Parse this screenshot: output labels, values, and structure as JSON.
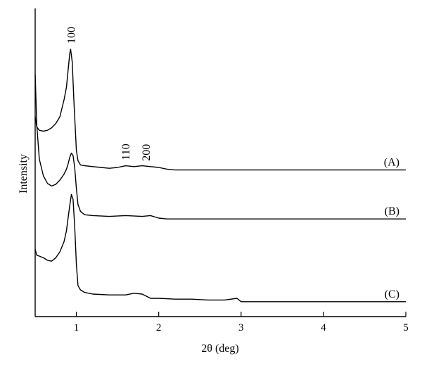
{
  "chart_data": {
    "type": "line",
    "xlabel": "2θ (deg)",
    "ylabel": "Intensity",
    "xlim": [
      0.5,
      5
    ],
    "x_ticks": [
      1,
      2,
      3,
      4,
      5
    ],
    "x_tick_labels": [
      "1",
      "2",
      "3",
      "4",
      "5"
    ],
    "y_ticks_shown": false,
    "grid": false,
    "legend": "none",
    "series": [
      {
        "name": "(A)",
        "x": [
          0.5,
          0.52,
          0.55,
          0.6,
          0.65,
          0.7,
          0.75,
          0.8,
          0.85,
          0.88,
          0.9,
          0.92,
          0.93,
          0.95,
          0.97,
          0.99,
          1.0,
          1.02,
          1.05,
          1.1,
          1.2,
          1.3,
          1.4,
          1.5,
          1.6,
          1.7,
          1.8,
          1.9,
          2.0,
          2.1,
          2.2,
          2.3,
          2.5,
          3.0,
          4.0,
          5.0
        ],
        "y": [
          2.2,
          2.08,
          2.04,
          2.03,
          2.04,
          2.07,
          2.12,
          2.2,
          2.4,
          2.55,
          2.75,
          2.95,
          3.0,
          2.85,
          2.4,
          2.0,
          1.8,
          1.68,
          1.63,
          1.62,
          1.61,
          1.6,
          1.59,
          1.6,
          1.62,
          1.61,
          1.62,
          1.61,
          1.6,
          1.58,
          1.57,
          1.57,
          1.57,
          1.57,
          1.57,
          1.57
        ]
      },
      {
        "name": "(B)",
        "x": [
          0.5,
          0.52,
          0.55,
          0.6,
          0.65,
          0.7,
          0.75,
          0.8,
          0.85,
          0.88,
          0.9,
          0.92,
          0.94,
          0.96,
          0.98,
          1.0,
          1.02,
          1.05,
          1.1,
          1.2,
          1.4,
          1.6,
          1.8,
          1.9,
          2.0,
          2.1,
          2.3,
          3.0,
          4.0,
          5.0
        ],
        "y": [
          2.7,
          2.1,
          1.7,
          1.5,
          1.41,
          1.38,
          1.4,
          1.45,
          1.52,
          1.58,
          1.64,
          1.72,
          1.77,
          1.74,
          1.6,
          1.35,
          1.16,
          1.08,
          1.04,
          1.03,
          1.02,
          1.03,
          1.02,
          1.03,
          1.0,
          0.99,
          0.99,
          0.99,
          0.99,
          0.99
        ]
      },
      {
        "name": "(C)",
        "x": [
          0.5,
          0.52,
          0.55,
          0.6,
          0.65,
          0.7,
          0.75,
          0.8,
          0.85,
          0.88,
          0.9,
          0.92,
          0.94,
          0.96,
          0.98,
          1.0,
          1.02,
          1.05,
          1.1,
          1.2,
          1.4,
          1.6,
          1.7,
          1.8,
          1.9,
          2.0,
          2.2,
          2.4,
          2.6,
          2.8,
          2.95,
          3.0,
          4.0,
          5.0
        ],
        "y": [
          0.63,
          0.56,
          0.55,
          0.53,
          0.5,
          0.49,
          0.53,
          0.6,
          0.72,
          0.85,
          1.0,
          1.15,
          1.28,
          1.22,
          0.9,
          0.45,
          0.2,
          0.15,
          0.12,
          0.1,
          0.09,
          0.09,
          0.11,
          0.1,
          0.05,
          0.05,
          0.04,
          0.04,
          0.03,
          0.03,
          0.05,
          0.01,
          0.01,
          0.01
        ]
      }
    ],
    "annotations": [
      {
        "text": "100",
        "x": 0.94
      },
      {
        "text": "110",
        "x": 1.6
      },
      {
        "text": "200",
        "x": 1.85
      }
    ]
  }
}
